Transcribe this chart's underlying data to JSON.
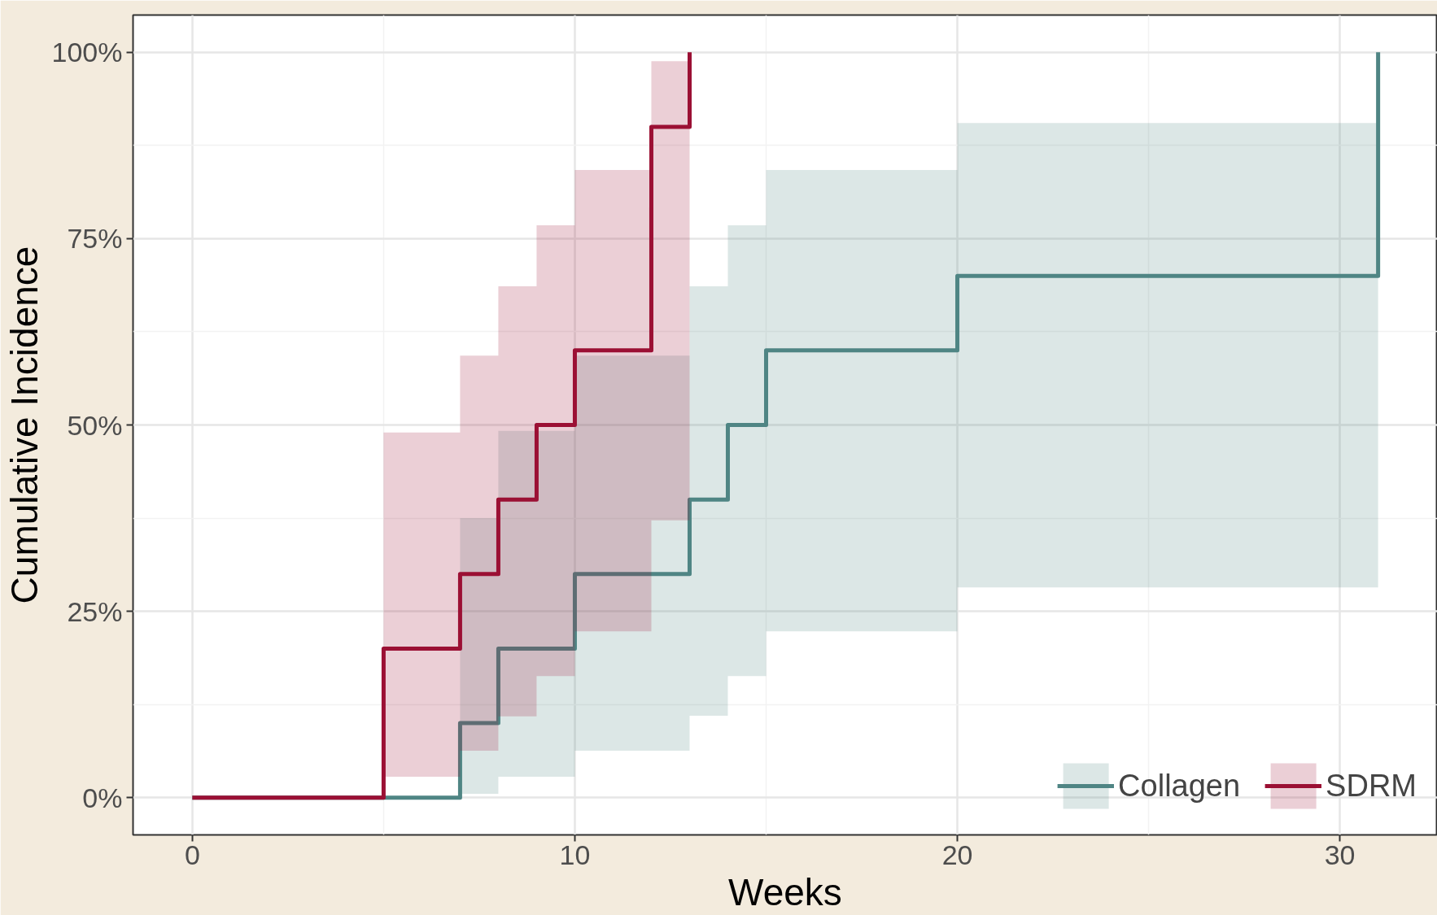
{
  "chart_data": {
    "type": "step",
    "xlabel": "Weeks",
    "ylabel": "Cumulative Incidence",
    "xlim": [
      -1.55,
      32.55
    ],
    "ylim": [
      -5,
      105
    ],
    "xticks": [
      0,
      10,
      20,
      30
    ],
    "yticks": [
      {
        "value": 0,
        "label": "0%"
      },
      {
        "value": 25,
        "label": "25%"
      },
      {
        "value": 50,
        "label": "50%"
      },
      {
        "value": 75,
        "label": "75%"
      },
      {
        "value": 100,
        "label": "100%"
      }
    ],
    "grid": true,
    "legend": "bottom right",
    "series": [
      {
        "name": "Collagen",
        "color": "#4f8584",
        "x": [
          0,
          7,
          8,
          10,
          13,
          14,
          15,
          20,
          31
        ],
        "values": [
          0,
          10,
          20,
          30,
          40,
          50,
          60,
          70,
          100
        ],
        "lower": [
          null,
          0.5,
          2.8,
          6.3,
          11,
          16.3,
          22.3,
          28.2,
          28.2
        ],
        "upper": [
          null,
          37.5,
          49.2,
          59.3,
          68.6,
          76.8,
          84.2,
          90.5,
          90.5
        ]
      },
      {
        "name": "SDRM",
        "color": "#9b1034",
        "x": [
          0,
          5,
          7,
          8,
          9,
          10,
          12,
          13
        ],
        "values": [
          0,
          20,
          30,
          40,
          50,
          60,
          90,
          100
        ],
        "lower": [
          null,
          2.8,
          6.3,
          10.9,
          16.3,
          22.3,
          37.2,
          37.2
        ],
        "upper": [
          null,
          49,
          59.3,
          68.6,
          76.8,
          84.2,
          98.8,
          98.8
        ]
      }
    ]
  }
}
